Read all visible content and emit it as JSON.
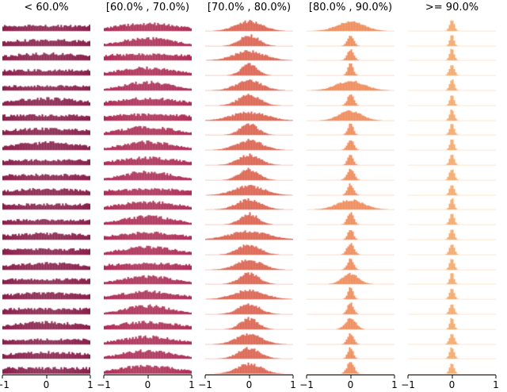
{
  "chart_data": {
    "type": "histogram",
    "layout": "small-multiples grid, 5 columns of stacked histograms, one x-axis per column at bottom",
    "description": "Distributions of a score on [-1, 1] grouped into five accuracy bins; histograms are nearly uniform in the lowest bin and sharpen into narrow peaks at 0 as the bin percentage increases.",
    "x_range": [
      -1,
      1
    ],
    "x_ticks": [
      -1,
      0,
      1
    ],
    "x_tick_labels": [
      "−1",
      "0",
      "1"
    ],
    "bins": 56,
    "grid": false,
    "legend": false,
    "row_format": [
      "std_of_bell_shape_in_x_units",
      "peak_height_fraction"
    ],
    "columns": [
      {
        "title": "< 60.0%",
        "color": "#8b1d4b",
        "noise": 0.5,
        "rows": [
          [
            9,
            0.42
          ],
          [
            1.3,
            0.5
          ],
          [
            1.0,
            0.55
          ],
          [
            9,
            0.42
          ],
          [
            9,
            0.38
          ],
          [
            0.9,
            0.58
          ],
          [
            9,
            0.44
          ],
          [
            1.2,
            0.5
          ],
          [
            0.85,
            0.6
          ],
          [
            9,
            0.4
          ],
          [
            9,
            0.44
          ],
          [
            1.1,
            0.52
          ],
          [
            9,
            0.42
          ],
          [
            9,
            0.38
          ],
          [
            1.3,
            0.5
          ],
          [
            9,
            0.44
          ],
          [
            0.95,
            0.55
          ],
          [
            9,
            0.4
          ],
          [
            1.1,
            0.5
          ],
          [
            9,
            0.44
          ],
          [
            0.85,
            0.58
          ],
          [
            9,
            0.4
          ],
          [
            1.2,
            0.52
          ],
          [
            9,
            0.46
          ]
        ]
      },
      {
        "title": "[60.0% , 70.0%)",
        "color": "#b02a55",
        "noise": 0.45,
        "rows": [
          [
            0.75,
            0.6
          ],
          [
            0.6,
            0.65
          ],
          [
            1.6,
            0.5
          ],
          [
            0.7,
            0.62
          ],
          [
            0.55,
            0.68
          ],
          [
            0.8,
            0.6
          ],
          [
            1.4,
            0.52
          ],
          [
            0.65,
            0.65
          ],
          [
            0.6,
            0.66
          ],
          [
            0.75,
            0.6
          ],
          [
            0.55,
            0.7
          ],
          [
            1.5,
            0.5
          ],
          [
            0.7,
            0.62
          ],
          [
            0.6,
            0.66
          ],
          [
            0.8,
            0.58
          ],
          [
            0.65,
            0.64
          ],
          [
            1.3,
            0.52
          ],
          [
            0.6,
            0.66
          ],
          [
            0.7,
            0.62
          ],
          [
            0.55,
            0.68
          ],
          [
            0.75,
            0.6
          ],
          [
            0.65,
            0.64
          ],
          [
            0.6,
            0.66
          ],
          [
            0.7,
            0.64
          ]
        ]
      },
      {
        "title": "[70.0% , 80.0%)",
        "color": "#e05b46",
        "noise": 0.35,
        "rows": [
          [
            0.3,
            0.8
          ],
          [
            0.22,
            0.9
          ],
          [
            0.35,
            0.75
          ],
          [
            0.18,
            0.95
          ],
          [
            0.3,
            0.8
          ],
          [
            0.25,
            0.85
          ],
          [
            0.4,
            0.7
          ],
          [
            0.2,
            0.9
          ],
          [
            0.3,
            0.8
          ],
          [
            0.25,
            0.85
          ],
          [
            0.22,
            0.88
          ],
          [
            0.35,
            0.75
          ],
          [
            0.28,
            0.82
          ],
          [
            0.2,
            0.9
          ],
          [
            0.45,
            0.68
          ],
          [
            0.25,
            0.85
          ],
          [
            0.3,
            0.8
          ],
          [
            0.22,
            0.88
          ],
          [
            0.35,
            0.75
          ],
          [
            0.25,
            0.85
          ],
          [
            0.2,
            0.9
          ],
          [
            0.3,
            0.8
          ],
          [
            0.25,
            0.85
          ],
          [
            0.28,
            0.82
          ]
        ]
      },
      {
        "title": "[80.0% , 90.0%)",
        "color": "#f4854e",
        "noise": 0.25,
        "rows": [
          [
            0.3,
            0.8
          ],
          [
            0.07,
            0.95
          ],
          [
            0.07,
            0.92
          ],
          [
            0.06,
            0.95
          ],
          [
            0.32,
            0.78
          ],
          [
            0.07,
            0.92
          ],
          [
            0.26,
            0.8
          ],
          [
            0.06,
            0.95
          ],
          [
            0.07,
            0.92
          ],
          [
            0.06,
            0.95
          ],
          [
            0.08,
            0.9
          ],
          [
            0.07,
            0.92
          ],
          [
            0.3,
            0.8
          ],
          [
            0.07,
            0.95
          ],
          [
            0.06,
            0.92
          ],
          [
            0.08,
            0.9
          ],
          [
            0.07,
            0.92
          ],
          [
            0.18,
            0.85
          ],
          [
            0.06,
            0.95
          ],
          [
            0.07,
            0.92
          ],
          [
            0.12,
            0.88
          ],
          [
            0.07,
            0.95
          ],
          [
            0.06,
            0.92
          ],
          [
            0.08,
            0.95
          ]
        ]
      },
      {
        "title": ">= 90.0%",
        "color": "#f8a45f",
        "noise": 0.15,
        "rows": [
          [
            0.05,
            0.95
          ],
          [
            0.045,
            0.92
          ],
          [
            0.05,
            0.95
          ],
          [
            0.055,
            0.9
          ],
          [
            0.05,
            0.95
          ],
          [
            0.045,
            0.92
          ],
          [
            0.05,
            0.95
          ],
          [
            0.05,
            0.92
          ],
          [
            0.045,
            0.95
          ],
          [
            0.05,
            0.9
          ],
          [
            0.055,
            0.95
          ],
          [
            0.05,
            0.92
          ],
          [
            0.045,
            0.95
          ],
          [
            0.05,
            0.92
          ],
          [
            0.05,
            0.95
          ],
          [
            0.055,
            0.9
          ],
          [
            0.05,
            0.95
          ],
          [
            0.045,
            0.92
          ],
          [
            0.05,
            0.95
          ],
          [
            0.05,
            0.92
          ],
          [
            0.045,
            0.95
          ],
          [
            0.055,
            0.9
          ],
          [
            0.05,
            0.95
          ],
          [
            0.05,
            0.92
          ]
        ]
      }
    ]
  }
}
